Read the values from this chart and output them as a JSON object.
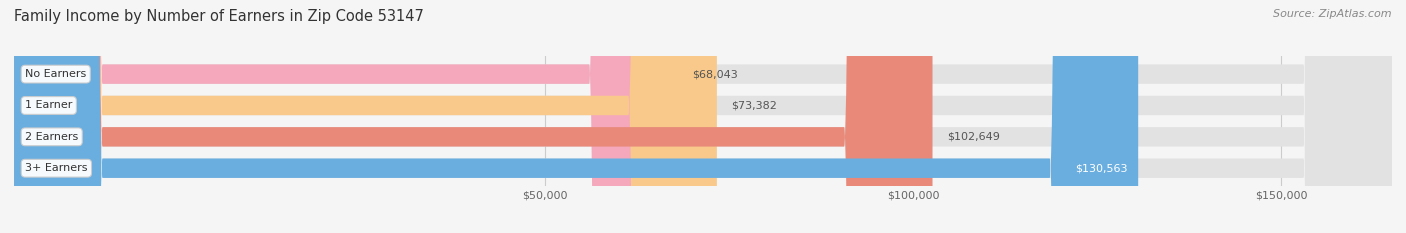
{
  "title": "Family Income by Number of Earners in Zip Code 53147",
  "source": "Source: ZipAtlas.com",
  "categories": [
    "No Earners",
    "1 Earner",
    "2 Earners",
    "3+ Earners"
  ],
  "values": [
    68043,
    73382,
    102649,
    130563
  ],
  "bar_colors": [
    "#f5a8bc",
    "#f8c98a",
    "#e8897a",
    "#6aaee0"
  ],
  "label_colors": [
    "#555555",
    "#555555",
    "#555555",
    "#ffffff"
  ],
  "background_color": "#f5f5f5",
  "bar_bg_color": "#e2e2e2",
  "xlim_min": -22000,
  "xlim_max": 165000,
  "xtick_values": [
    50000,
    100000,
    150000
  ],
  "xtick_labels": [
    "$50,000",
    "$100,000",
    "$150,000"
  ],
  "title_fontsize": 10.5,
  "source_fontsize": 8,
  "bar_height": 0.62,
  "rounding_size": 12000
}
